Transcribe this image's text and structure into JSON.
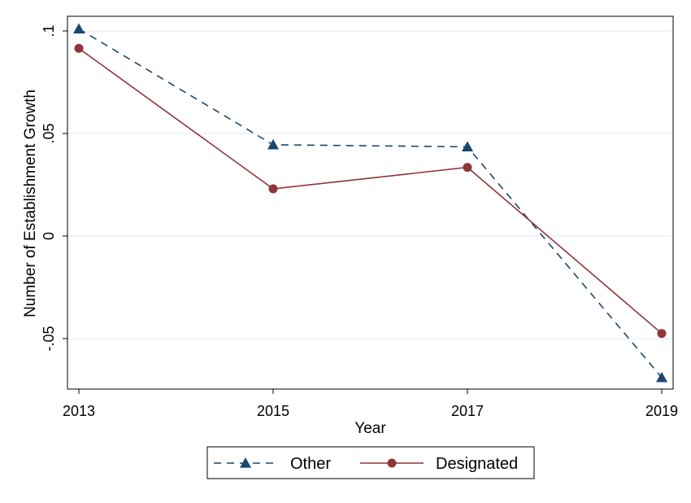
{
  "chart_data": {
    "type": "line",
    "xlabel": "Year",
    "ylabel": "Number of Establishment Growth",
    "x": [
      2013,
      2015,
      2017,
      2019
    ],
    "x_tick_labels": [
      "2013",
      "2015",
      "2017",
      "2019"
    ],
    "ylim": [
      -0.075,
      0.102
    ],
    "y_ticks": [
      0.1,
      0.05,
      0,
      -0.05
    ],
    "y_tick_labels": [
      ".1",
      ".05",
      "0",
      "-.05"
    ],
    "grid": true,
    "legend_position": "bottom",
    "series": [
      {
        "name": "Other",
        "values": [
          0.101,
          0.0445,
          0.0435,
          -0.069
        ],
        "color": "#1a476f",
        "line_style": "dashed",
        "marker": "triangle"
      },
      {
        "name": "Designated",
        "values": [
          0.0915,
          0.023,
          0.0335,
          -0.0475
        ],
        "color": "#90353b",
        "line_style": "solid",
        "marker": "circle"
      }
    ]
  }
}
